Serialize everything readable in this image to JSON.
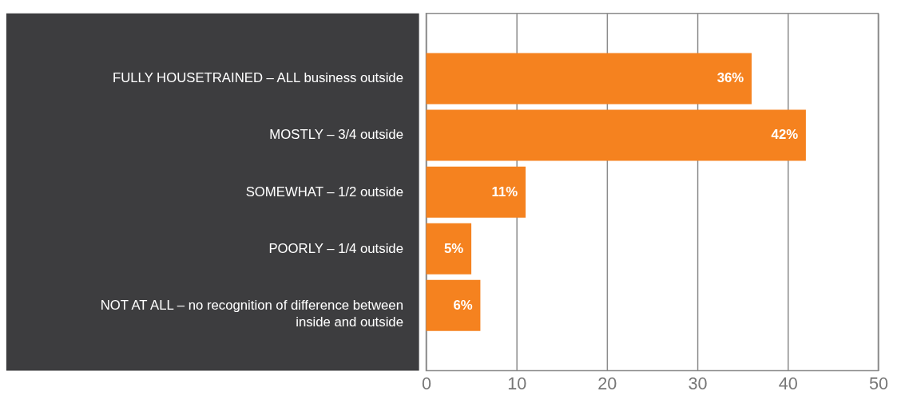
{
  "chart_data": {
    "type": "bar",
    "orientation": "horizontal",
    "categories": [
      "FULLY HOUSETRAINED – ALL business outside",
      "MOSTLY – 3/4 outside",
      "SOMEWHAT – 1/2 outside",
      "POORLY – 1/4 outside",
      "NOT AT ALL – no recognition of difference between inside and outside"
    ],
    "values": [
      36,
      42,
      11,
      5,
      6
    ],
    "value_labels": [
      "36%",
      "42%",
      "11%",
      "5%",
      "6%"
    ],
    "color": "#f5821f",
    "xlim": [
      0,
      50
    ],
    "xticks": [
      0,
      10,
      20,
      30,
      40,
      50
    ],
    "grid": "x",
    "legend": false
  }
}
